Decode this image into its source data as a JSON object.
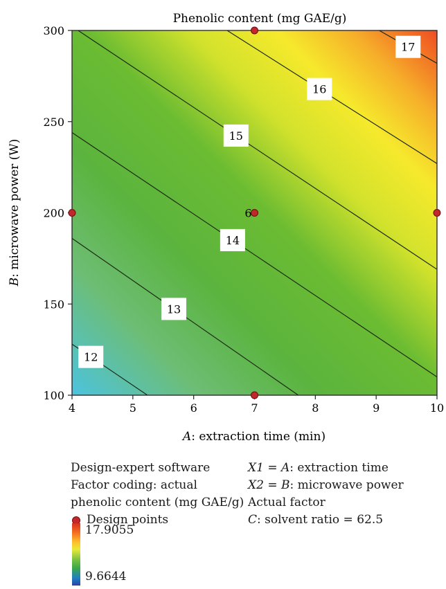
{
  "chart_data": {
    "type": "contour",
    "title": "Phenolic content (mg GAE/g)",
    "xlabel_var": "A",
    "xlabel_text": ": extraction time (min)",
    "ylabel_var": "B",
    "ylabel_text": ": microwave power (W)",
    "xlim": [
      4,
      10
    ],
    "ylim": [
      100,
      300
    ],
    "x_ticks": [
      4,
      5,
      6,
      7,
      8,
      9,
      10
    ],
    "y_ticks": [
      100,
      150,
      200,
      250,
      300
    ],
    "contour_levels": [
      {
        "level": 12,
        "label": "12",
        "x": [
          4,
          5.24
        ],
        "y": [
          128,
          100
        ]
      },
      {
        "level": 13,
        "label": "13",
        "x": [
          4,
          7.72
        ],
        "y": [
          186,
          100
        ]
      },
      {
        "level": 14,
        "label": "14",
        "x": [
          4,
          10
        ],
        "y": [
          244,
          110
        ]
      },
      {
        "level": 15,
        "label": "15",
        "x": [
          4.1,
          10
        ],
        "y": [
          300,
          169
        ]
      },
      {
        "level": 16,
        "label": "16",
        "x": [
          6.55,
          10
        ],
        "y": [
          300,
          227
        ]
      },
      {
        "level": 17,
        "label": "17",
        "x": [
          9.05,
          10
        ],
        "y": [
          300,
          282
        ]
      }
    ],
    "design_points": [
      {
        "x": 7,
        "y": 300
      },
      {
        "x": 4,
        "y": 200
      },
      {
        "x": 7,
        "y": 200
      },
      {
        "x": 10,
        "y": 200
      },
      {
        "x": 7,
        "y": 100
      }
    ],
    "center_point_label": "6",
    "center_point": {
      "x": 7,
      "y": 200
    },
    "colorbar": {
      "max": "17.9055",
      "min": "9.6644"
    }
  },
  "legend": {
    "software": "Design-expert software",
    "coding": "Factor coding: actual",
    "response": "phenolic content (mg GAE/g)",
    "design_points": "Design points",
    "x1_prefix": "X1 = ",
    "x1_var": "A",
    "x1_text": ": extraction time",
    "x2_prefix": "X2 = ",
    "x2_var": "B",
    "x2_text": ": microwave power",
    "actual_factor": "Actual factor",
    "c_var": "C",
    "c_text": ": solvent ratio = 62.5"
  }
}
